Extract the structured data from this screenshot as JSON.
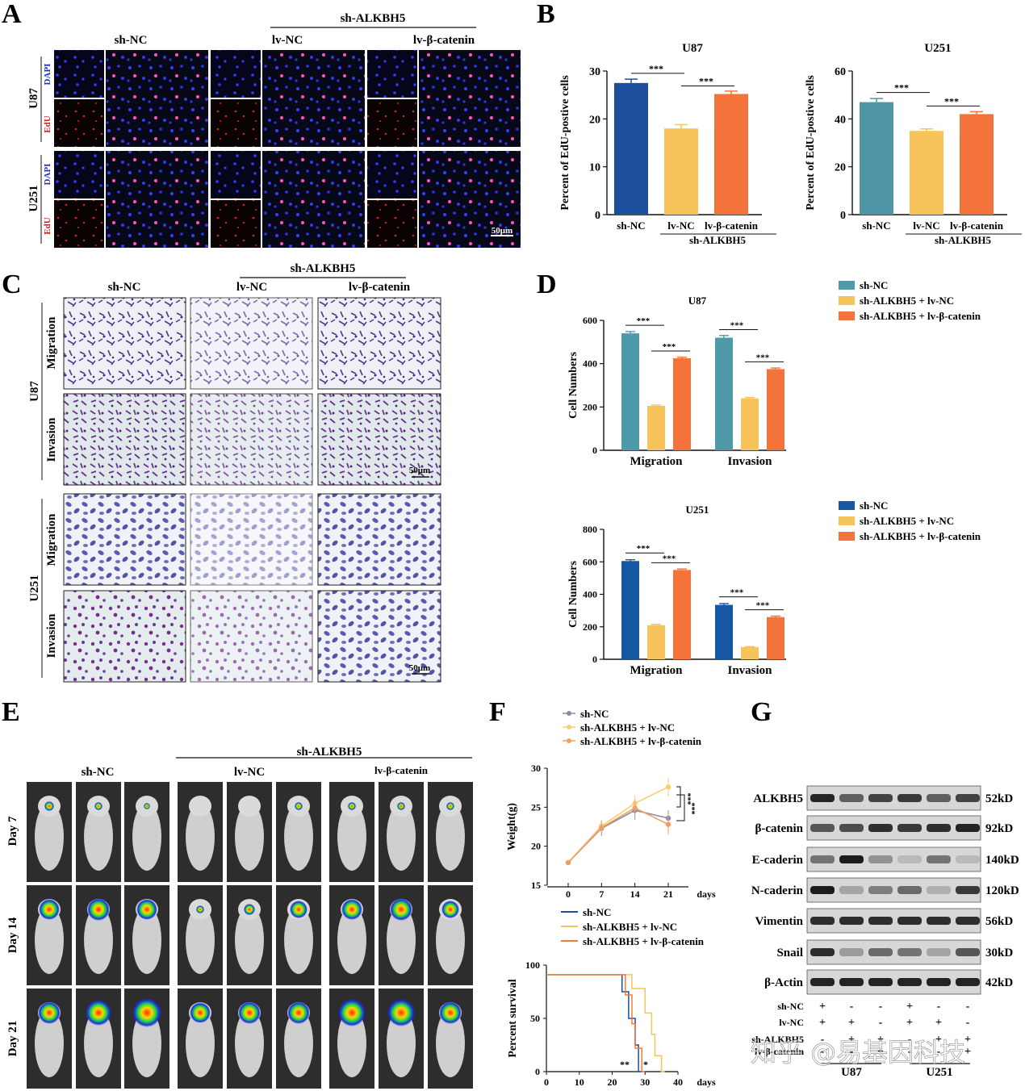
{
  "panels": {
    "a": "A",
    "b": "B",
    "c": "C",
    "d": "D",
    "e": "E",
    "f": "F",
    "g": "G"
  },
  "colors": {
    "sh_nc_b_u87": "#1d4f9e",
    "sh_nc_b_u251": "#4f97a6",
    "sh_nc_d_u87": "#4f9aa8",
    "sh_nc_d_u251": "#1657a3",
    "lv_nc": "#f7c45c",
    "lv_catenin": "#f3733a"
  },
  "panel_a": {
    "group_label": "sh-ALKBH5",
    "columns": [
      "sh-NC",
      "lv-NC",
      "lv-β-catenin"
    ],
    "rows": [
      "U87",
      "U251"
    ],
    "channels": [
      "DAPI",
      "EdU"
    ],
    "scale": "50μm"
  },
  "panel_c": {
    "group_label": "sh-ALKBH5",
    "columns": [
      "sh-NC",
      "lv-NC",
      "lv-β-catenin"
    ],
    "cells": [
      "U87",
      "U251"
    ],
    "assays": [
      "Migration",
      "Invasion"
    ],
    "scale": "50μm"
  },
  "panel_e": {
    "group_label": "sh-ALKBH5",
    "columns": [
      "sh-NC",
      "lv-NC",
      "lv-β-catenin"
    ],
    "rows": [
      "Day 7",
      "Day 14",
      "Day 21"
    ]
  },
  "panel_g": {
    "proteins": [
      "ALKBH5",
      "β-catenin",
      "E-caderin",
      "N-caderin",
      "Vimentin",
      "Snail",
      "β-Actin"
    ],
    "sizes": [
      "52kD",
      "92kD",
      "140kD",
      "120kD",
      "56kD",
      "30kD",
      "42kD"
    ],
    "row_labels": [
      "sh-NC",
      "lv-NC",
      "sh-ALKBH5",
      "lv-β-catenin"
    ],
    "signs": [
      [
        "+",
        "-",
        "-",
        "+",
        "-",
        "-"
      ],
      [
        "+",
        "+",
        "-",
        "+",
        "+",
        "-"
      ],
      [
        "-",
        "+",
        "+",
        "-",
        "+",
        "+"
      ],
      [
        "-",
        "-",
        "+",
        "-",
        "-",
        "+"
      ]
    ],
    "cell_lines": [
      "U87",
      "U251"
    ]
  },
  "watermark": "知乎 @易基因科技",
  "chart_data": [
    {
      "id": "B-U87",
      "type": "bar",
      "title": "U87",
      "ylabel": "Percent of EdU-postive cells",
      "ylim": [
        0,
        30
      ],
      "yticks": [
        0,
        10,
        20,
        30
      ],
      "categories": [
        "sh-NC",
        "lv-NC",
        "lv-β-catenin"
      ],
      "group_label": "sh-ALKBH5",
      "values": [
        27.5,
        18,
        25.2
      ],
      "errors": [
        0.8,
        0.8,
        0.6
      ],
      "significance": [
        "***",
        "***"
      ]
    },
    {
      "id": "B-U251",
      "type": "bar",
      "title": "U251",
      "ylabel": "Percent of EdU-postive cells",
      "ylim": [
        0,
        60
      ],
      "yticks": [
        0,
        20,
        40,
        60
      ],
      "categories": [
        "sh-NC",
        "lv-NC",
        "lv-β-catenin"
      ],
      "group_label": "sh-ALKBH5",
      "values": [
        47,
        35,
        42
      ],
      "errors": [
        1.5,
        0.8,
        1.0
      ],
      "significance": [
        "***",
        "***"
      ]
    },
    {
      "id": "D-U87",
      "type": "bar",
      "title": "U87",
      "ylabel": "Cell Numbers",
      "ylim": [
        0,
        600
      ],
      "yticks": [
        0,
        200,
        400,
        600
      ],
      "categories": [
        "Migration",
        "Invasion"
      ],
      "series": [
        {
          "name": "sh-NC",
          "values": [
            540,
            520
          ]
        },
        {
          "name": "sh-ALKBH5 + lv-NC",
          "values": [
            205,
            240
          ]
        },
        {
          "name": "sh-ALKBH5 + lv-β-catenin",
          "values": [
            425,
            375
          ]
        }
      ],
      "errors": [
        [
          8,
          10
        ],
        [
          4,
          4
        ],
        [
          5,
          5
        ]
      ],
      "significance": [
        "***",
        "***"
      ],
      "legend": "top-right"
    },
    {
      "id": "D-U251",
      "type": "bar",
      "title": "U251",
      "ylabel": "Cell Numbers",
      "ylim": [
        0,
        800
      ],
      "yticks": [
        0,
        200,
        400,
        600,
        800
      ],
      "categories": [
        "Migration",
        "Invasion"
      ],
      "series": [
        {
          "name": "sh-NC",
          "values": [
            605,
            335
          ]
        },
        {
          "name": "sh-ALKBH5 + lv-NC",
          "values": [
            210,
            75
          ]
        },
        {
          "name": "sh-ALKBH5 + lv-β-catenin",
          "values": [
            550,
            260
          ]
        }
      ],
      "errors": [
        [
          8,
          8
        ],
        [
          5,
          3
        ],
        [
          6,
          6
        ]
      ],
      "significance": [
        "***",
        "***"
      ],
      "legend": "top-right"
    },
    {
      "id": "F-weight",
      "type": "line",
      "xlabel": "days",
      "ylabel": "Weight(g)",
      "x": [
        0,
        7,
        14,
        21
      ],
      "ylim": [
        15,
        30
      ],
      "yticks": [
        15,
        20,
        25,
        30
      ],
      "series": [
        {
          "name": "sh-NC",
          "values": [
            17.9,
            22.3,
            24.6,
            23.6
          ],
          "color": "#8a8aa8"
        },
        {
          "name": "sh-ALKBH5 + lv-NC",
          "values": [
            17.9,
            22.6,
            25.5,
            27.6
          ],
          "color": "#f8cf73"
        },
        {
          "name": "sh-ALKBH5 + lv-β-catenin",
          "values": [
            17.9,
            22.4,
            24.9,
            22.8
          ],
          "color": "#f2a060"
        }
      ],
      "errors": [
        [
          0.3,
          1.0,
          1.2,
          1.0
        ],
        [
          0.3,
          0.8,
          1.0,
          1.2
        ],
        [
          0.3,
          0.8,
          1.1,
          1.3
        ]
      ],
      "significance": [
        "***",
        "***"
      ],
      "legend": "top-left"
    },
    {
      "id": "F-survival",
      "type": "line",
      "xlabel": "days",
      "ylabel": "Percent survival",
      "xlim": [
        0,
        40
      ],
      "xticks": [
        0,
        10,
        20,
        30,
        40
      ],
      "ylim": [
        0,
        100
      ],
      "yticks": [
        0,
        50,
        100
      ],
      "series": [
        {
          "name": "sh-NC",
          "color": "#1a4fa0",
          "steps": [
            [
              0,
              91
            ],
            [
              23,
              91
            ],
            [
              23,
              75
            ],
            [
              25,
              75
            ],
            [
              25,
              50
            ],
            [
              27,
              50
            ],
            [
              27,
              25
            ],
            [
              28,
              25
            ],
            [
              28,
              0
            ],
            [
              29,
              0
            ]
          ]
        },
        {
          "name": "sh-ALKBH5 + lv-NC",
          "color": "#f5c55a",
          "steps": [
            [
              0,
              91
            ],
            [
              26,
              91
            ],
            [
              26,
              78
            ],
            [
              30,
              78
            ],
            [
              30,
              55
            ],
            [
              32,
              55
            ],
            [
              32,
              35
            ],
            [
              33,
              35
            ],
            [
              33,
              15
            ],
            [
              35,
              15
            ],
            [
              35,
              0
            ],
            [
              36,
              0
            ]
          ]
        },
        {
          "name": "sh-ALKBH5 + lv-β-catenin",
          "color": "#f07a3e",
          "steps": [
            [
              0,
              91
            ],
            [
              24,
              91
            ],
            [
              24,
              72
            ],
            [
              26,
              72
            ],
            [
              26,
              45
            ],
            [
              27,
              45
            ],
            [
              27,
              22
            ],
            [
              29,
              22
            ],
            [
              29,
              0
            ],
            [
              30,
              0
            ]
          ]
        }
      ],
      "significance": [
        "**",
        "*"
      ],
      "legend": "top-left"
    }
  ]
}
